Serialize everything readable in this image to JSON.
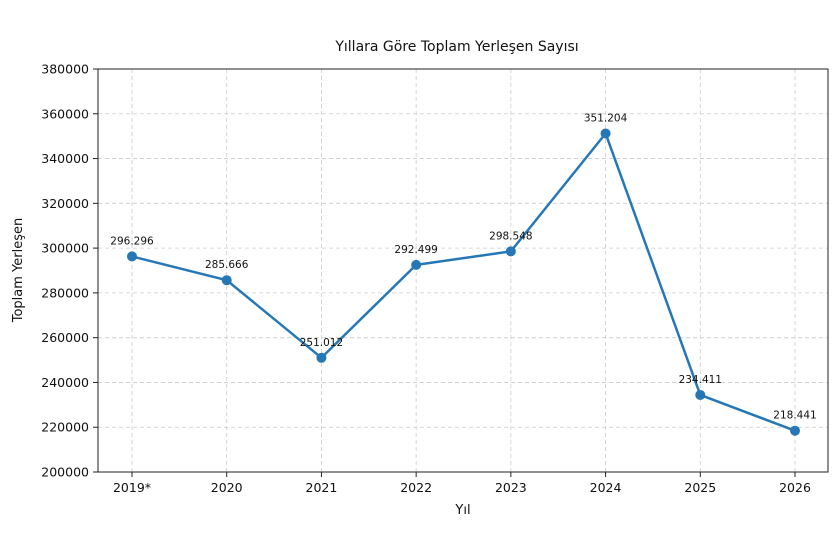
{
  "chart_data": {
    "type": "line",
    "title": "Yıllara Göre Toplam Yerleşen Sayısı",
    "xlabel": "Yıl",
    "ylabel": "Toplam Yerleşen",
    "categories": [
      "2019*",
      "2020",
      "2021",
      "2022",
      "2023",
      "2024",
      "2025",
      "2026"
    ],
    "series": [
      {
        "values": [
          296296,
          285666,
          251012,
          292499,
          298548,
          351204,
          234411,
          218441
        ],
        "data_labels": [
          "296.296",
          "285.666",
          "251.012",
          "292.499",
          "298.548",
          "351.204",
          "234.411",
          "218.441"
        ]
      }
    ],
    "ylim": [
      200000,
      380000
    ],
    "yticks": [
      200000,
      220000,
      240000,
      260000,
      280000,
      300000,
      320000,
      340000,
      360000,
      380000
    ],
    "ytick_labels": [
      "200000",
      "220000",
      "240000",
      "260000",
      "280000",
      "300000",
      "320000",
      "340000",
      "360000",
      "380000"
    ],
    "grid": true,
    "line_color": "#2577b5"
  }
}
